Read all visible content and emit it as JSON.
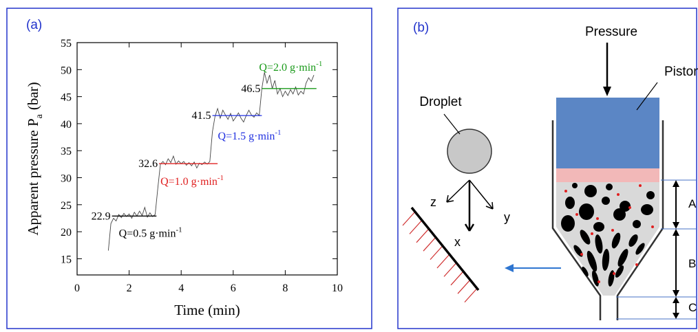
{
  "chart_data": {
    "type": "line",
    "panel_label": "(a)",
    "xlabel": "Time (min)",
    "ylabel": "Apparent pressure P",
    "ylabel_sub": "a",
    "ylabel_unit": "(bar)",
    "xlim": [
      0,
      10
    ],
    "xticks": [
      0,
      2,
      4,
      6,
      8,
      10
    ],
    "ylim": [
      12,
      55
    ],
    "yticks": [
      15,
      20,
      25,
      30,
      35,
      40,
      45,
      50,
      55
    ],
    "line_color": "#444444",
    "x": [
      1.2,
      1.3,
      1.4,
      1.5,
      1.6,
      1.7,
      1.8,
      1.9,
      2.0,
      2.1,
      2.2,
      2.3,
      2.4,
      2.5,
      2.6,
      2.7,
      2.8,
      2.9,
      3.0,
      3.1,
      3.2,
      3.3,
      3.4,
      3.5,
      3.6,
      3.7,
      3.8,
      3.9,
      4.0,
      4.1,
      4.2,
      4.3,
      4.4,
      4.5,
      4.6,
      4.7,
      4.8,
      4.9,
      5.0,
      5.1,
      5.2,
      5.3,
      5.4,
      5.5,
      5.6,
      5.7,
      5.8,
      5.9,
      6.0,
      6.1,
      6.2,
      6.3,
      6.4,
      6.5,
      6.6,
      6.7,
      6.8,
      6.9,
      7.0,
      7.1,
      7.2,
      7.3,
      7.4,
      7.5,
      7.6,
      7.7,
      7.8,
      7.9,
      8.0,
      8.1,
      8.2,
      8.3,
      8.4,
      8.5,
      8.6,
      8.7,
      8.8,
      8.9,
      9.0,
      9.1
    ],
    "values": [
      16.5,
      21.5,
      22.5,
      22.0,
      23.2,
      22.6,
      23.4,
      22.8,
      23.3,
      22.5,
      23.6,
      22.9,
      23.8,
      23.0,
      24.5,
      22.7,
      23.5,
      22.8,
      23.2,
      28.0,
      32.5,
      33.0,
      32.4,
      33.5,
      32.8,
      34.0,
      32.5,
      33.1,
      32.6,
      33.0,
      32.3,
      32.8,
      32.2,
      32.9,
      31.8,
      32.7,
      32.4,
      32.9,
      32.5,
      33.0,
      38.5,
      41.3,
      42.8,
      41.0,
      42.5,
      41.6,
      40.8,
      41.9,
      40.5,
      41.2,
      42.0,
      41.0,
      40.3,
      41.5,
      42.5,
      41.6,
      41.2,
      42.0,
      41.5,
      46.5,
      49.5,
      47.5,
      49.0,
      46.5,
      48.0,
      45.5,
      46.5,
      45.0,
      46.0,
      45.2,
      46.3,
      45.5,
      46.8,
      45.3,
      46.0,
      45.5,
      47.5,
      48.5,
      47.8,
      49.0
    ],
    "levels": [
      {
        "value": 22.9,
        "x": [
          1.34,
          3.05
        ],
        "color": "#000000",
        "label": "Q=0.5 g·min",
        "superscript": "-1"
      },
      {
        "value": 32.6,
        "x": [
          3.15,
          5.4
        ],
        "color": "#e02020",
        "label": "Q=1.0 g·min",
        "superscript": "-1"
      },
      {
        "value": 41.5,
        "x": [
          5.2,
          7.1
        ],
        "color": "#2030e0",
        "label": "Q=1.5 g·min",
        "superscript": "-1"
      },
      {
        "value": 46.5,
        "x": [
          7.1,
          9.2
        ],
        "color": "#1a9a1a",
        "label": "Q=2.0 g·min",
        "superscript": "-1"
      }
    ]
  },
  "diagram": {
    "panel_label": "(b)",
    "pressure": "Pressure",
    "piston": "Piston",
    "droplet": "Droplet",
    "axis_z": "z",
    "axis_y": "y",
    "axis_x": "x",
    "zone_a": "A",
    "zone_b": "B",
    "zone_c": "C"
  }
}
